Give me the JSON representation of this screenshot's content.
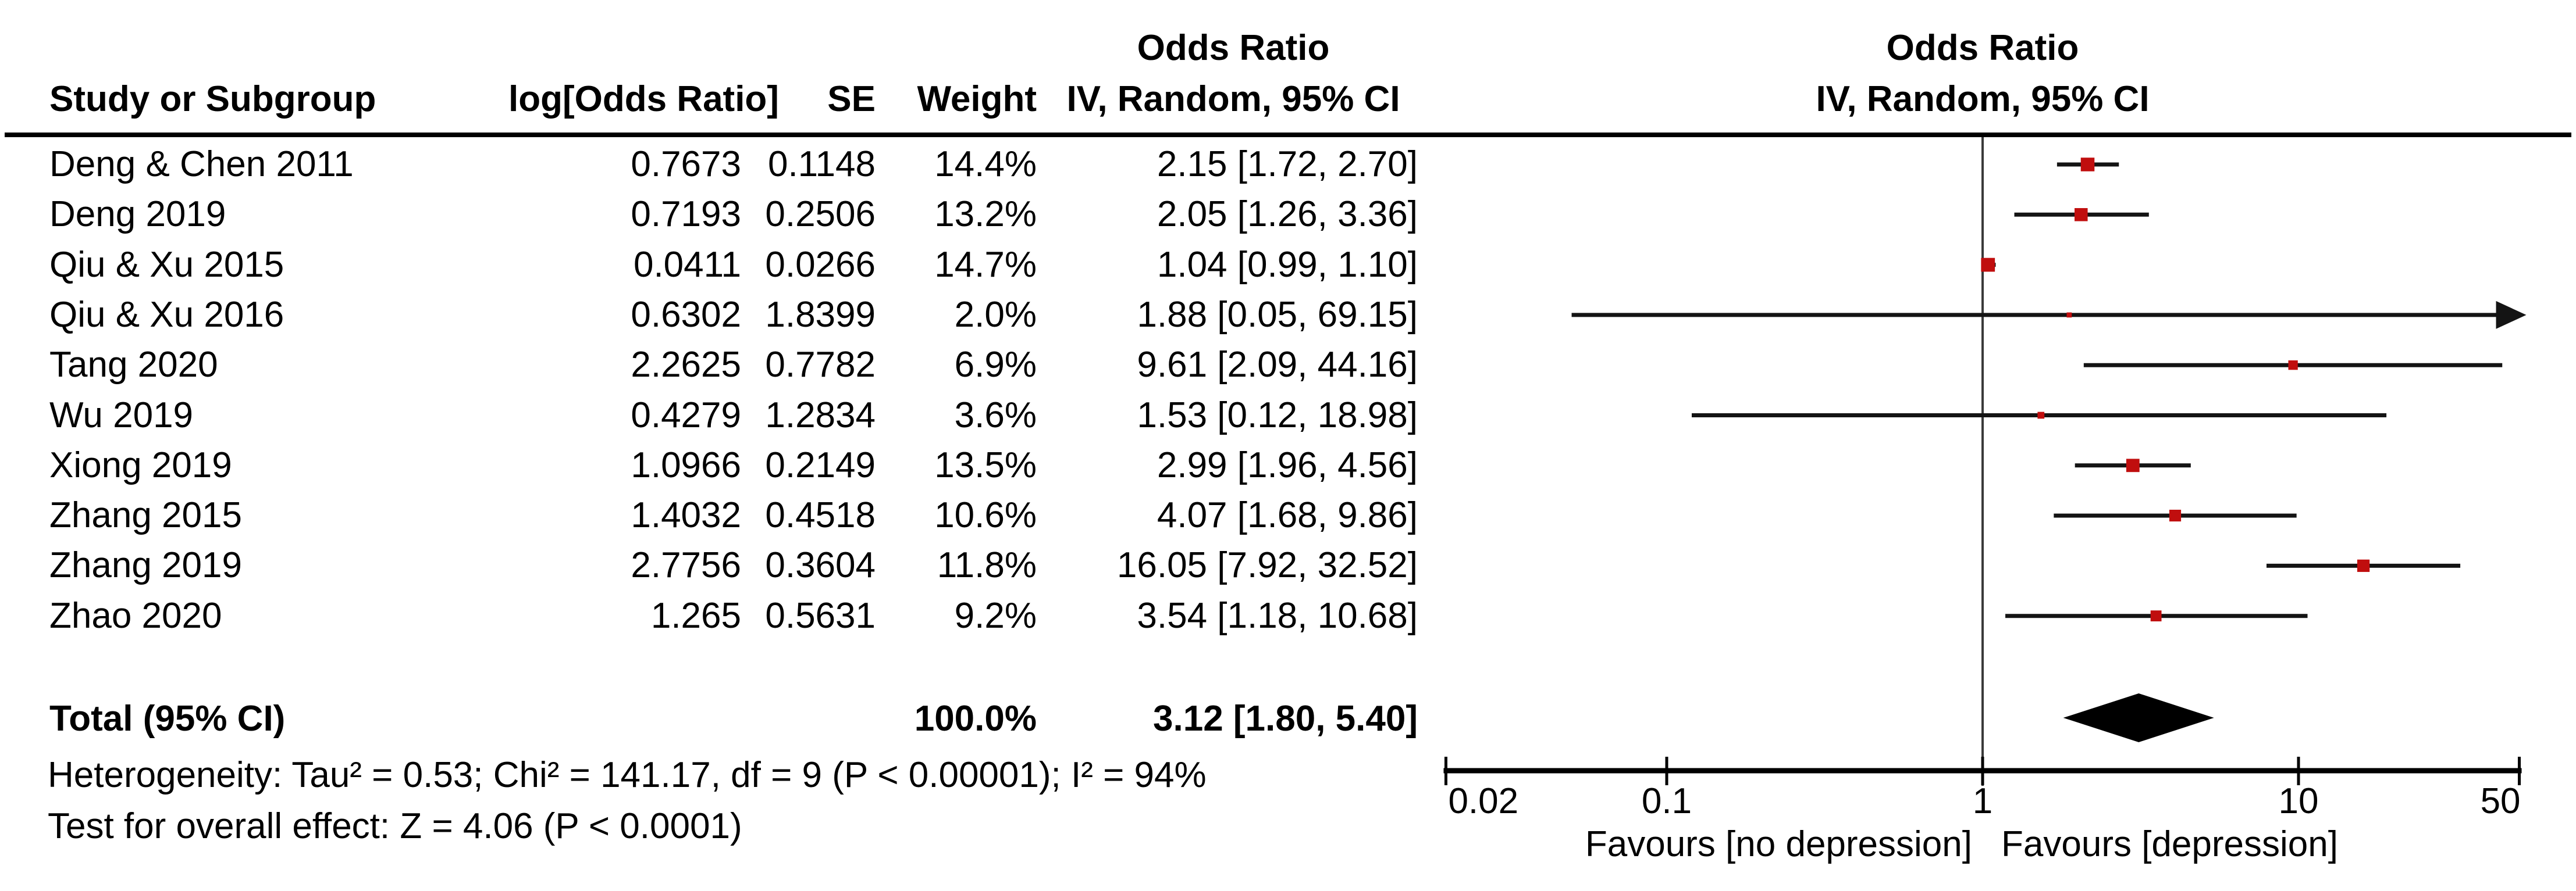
{
  "chart_data": {
    "type": "scatter",
    "subtype": "forest_plot_meta_analysis",
    "scale": "log",
    "columns": {
      "study": "Study or Subgroup",
      "log_or": "log[Odds Ratio]",
      "se": "SE",
      "weight": "Weight",
      "or_header": "Odds Ratio",
      "ci_header": "IV, Random, 95% CI"
    },
    "studies": [
      {
        "name": "Deng & Chen 2011",
        "log_or": "0.7673",
        "se": "0.1148",
        "weight_label": "14.4%",
        "ci_label": "2.15 [1.72, 2.70]",
        "weight_pct": 14.4,
        "or": 2.15,
        "ci_low": 1.72,
        "ci_high": 2.7
      },
      {
        "name": "Deng 2019",
        "log_or": "0.7193",
        "se": "0.2506",
        "weight_label": "13.2%",
        "ci_label": "2.05 [1.26, 3.36]",
        "weight_pct": 13.2,
        "or": 2.05,
        "ci_low": 1.26,
        "ci_high": 3.36
      },
      {
        "name": "Qiu & Xu 2015",
        "log_or": "0.0411",
        "se": "0.0266",
        "weight_label": "14.7%",
        "ci_label": "1.04 [0.99, 1.10]",
        "weight_pct": 14.7,
        "or": 1.04,
        "ci_low": 0.99,
        "ci_high": 1.1
      },
      {
        "name": "Qiu & Xu 2016",
        "log_or": "0.6302",
        "se": "1.8399",
        "weight_label": "2.0%",
        "ci_label": "1.88 [0.05, 69.15]",
        "weight_pct": 2.0,
        "or": 1.88,
        "ci_low": 0.05,
        "ci_high": 69.15
      },
      {
        "name": "Tang 2020",
        "log_or": "2.2625",
        "se": "0.7782",
        "weight_label": "6.9%",
        "ci_label": "9.61 [2.09, 44.16]",
        "weight_pct": 6.9,
        "or": 9.61,
        "ci_low": 2.09,
        "ci_high": 44.16
      },
      {
        "name": "Wu 2019",
        "log_or": "0.4279",
        "se": "1.2834",
        "weight_label": "3.6%",
        "ci_label": "1.53 [0.12, 18.98]",
        "weight_pct": 3.6,
        "or": 1.53,
        "ci_low": 0.12,
        "ci_high": 18.98
      },
      {
        "name": "Xiong 2019",
        "log_or": "1.0966",
        "se": "0.2149",
        "weight_label": "13.5%",
        "ci_label": "2.99 [1.96, 4.56]",
        "weight_pct": 13.5,
        "or": 2.99,
        "ci_low": 1.96,
        "ci_high": 4.56
      },
      {
        "name": "Zhang 2015",
        "log_or": "1.4032",
        "se": "0.4518",
        "weight_label": "10.6%",
        "ci_label": "4.07 [1.68, 9.86]",
        "weight_pct": 10.6,
        "or": 4.07,
        "ci_low": 1.68,
        "ci_high": 9.86
      },
      {
        "name": "Zhang 2019",
        "log_or": "2.7756",
        "se": "0.3604",
        "weight_label": "11.8%",
        "ci_label": "16.05 [7.92, 32.52]",
        "weight_pct": 11.8,
        "or": 16.05,
        "ci_low": 7.92,
        "ci_high": 32.52
      },
      {
        "name": "Zhao 2020",
        "log_or": "1.265",
        "se": "0.5631",
        "weight_label": "9.2%",
        "ci_label": "3.54 [1.18, 10.68]",
        "weight_pct": 9.2,
        "or": 3.54,
        "ci_low": 1.18,
        "ci_high": 10.68
      }
    ],
    "total": {
      "label": "Total (95% CI)",
      "weight_label": "100.0%",
      "ci_label": "3.12 [1.80, 5.40]",
      "or": 3.12,
      "ci_low": 1.8,
      "ci_high": 5.4
    },
    "heterogeneity": "Heterogeneity: Tau² = 0.53; Chi² = 141.17, df = 9 (P < 0.00001); I² = 94%",
    "overall_effect": "Test for overall effect: Z = 4.06 (P < 0.0001)",
    "axis": {
      "min": 0.02,
      "max": 50,
      "ticks": [
        0.02,
        0.1,
        1,
        10,
        50
      ],
      "tick_labels": [
        "0.02",
        "0.1",
        "1",
        "10",
        "50"
      ]
    },
    "favours_left": "Favours [no depression]",
    "favours_right": "Favours [depression]",
    "colors": {
      "marker_red": "#c00e0e",
      "diamond_black": "#000000",
      "ci_line": "#141414",
      "axis_black": "#000000",
      "center_line": "#3a3a3a"
    }
  }
}
